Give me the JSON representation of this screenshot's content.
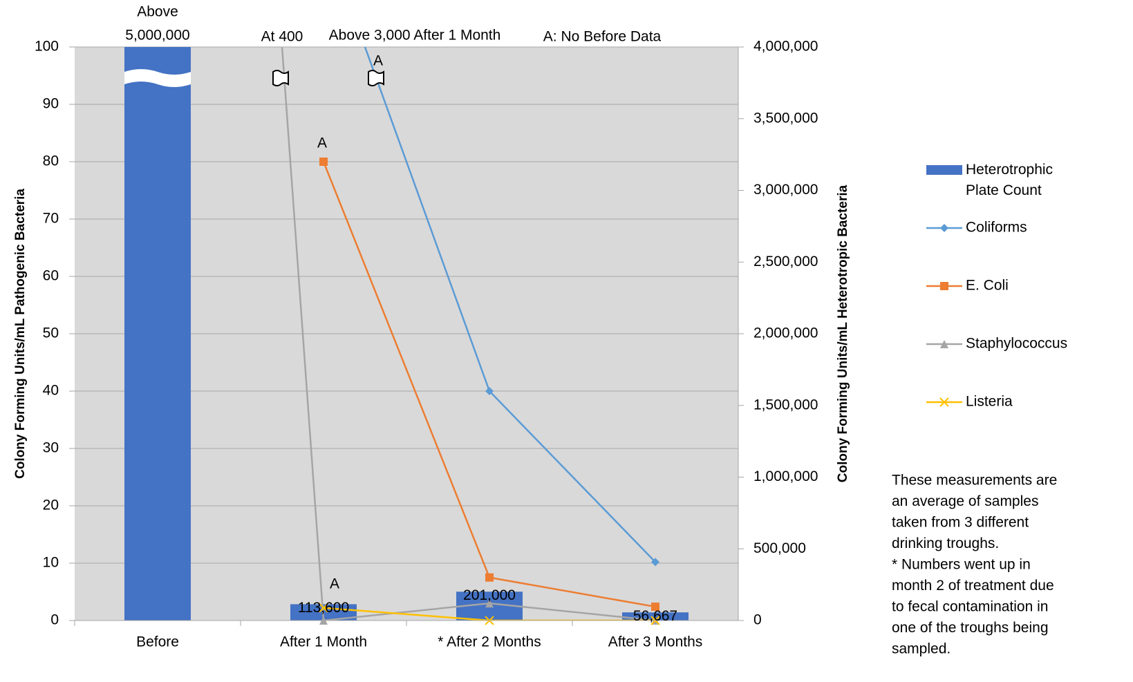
{
  "chart_data": {
    "type": "combo",
    "categories": [
      "Before",
      "After 1 Month",
      "* After 2 Months",
      "After 3 Months"
    ],
    "ylabel": "Colony Forming Units/mL Pathogenic Bacteria",
    "y2label": "Colony Forming Units/mL Heterotropic Bacteria",
    "ylim": [
      0,
      100
    ],
    "yticks": [
      0,
      10,
      20,
      30,
      40,
      50,
      60,
      70,
      80,
      90,
      100
    ],
    "y2lim": [
      0,
      4000000
    ],
    "y2ticks": [
      0,
      {
        "value": 500000,
        "label": "500,000"
      },
      {
        "value": 1000000,
        "label": "1,000,000"
      },
      {
        "value": 1500000,
        "label": "1,500,000"
      },
      {
        "value": 2000000,
        "label": "2,000,000"
      },
      {
        "value": 2500000,
        "label": "2,500,000"
      },
      {
        "value": 3000000,
        "label": "3,000,000"
      },
      {
        "value": 3500000,
        "label": "3,500,000"
      },
      {
        "value": {
          "value": 4000000,
          "label": "4,000,000"
        },
        "label": "4,000,000"
      }
    ],
    "grid": true,
    "series": [
      {
        "name": "Heterotrophic Plate Count",
        "type": "bar",
        "axis": "y2",
        "color": "#4472c4",
        "values": [
          5000000,
          113600,
          201000,
          56667
        ],
        "value_labels": [
          "5,000,000",
          "113,600",
          "201,000",
          "56,667"
        ]
      },
      {
        "name": "Coliforms",
        "type": "line",
        "marker": "diamond",
        "color": "#5b9bd5",
        "values": [
          null,
          120,
          40,
          10.2
        ]
      },
      {
        "name": "E. Coli",
        "type": "line",
        "marker": "square",
        "color": "#ed7d31",
        "values": [
          null,
          80,
          7.5,
          2.4
        ]
      },
      {
        "name": "Staphylococcus",
        "type": "line",
        "marker": "triangle",
        "color": "#a5a5a5",
        "values": [
          400,
          0,
          3,
          0
        ]
      },
      {
        "name": "Listeria",
        "type": "line",
        "marker": "x",
        "color": "#ffc000",
        "values": [
          null,
          2.2,
          0,
          0
        ]
      }
    ],
    "annotations": [
      "Above",
      "At 400",
      "Above 3,000 After 1 Month",
      "A: No Before Data",
      "A",
      "A",
      "A"
    ],
    "note": [
      "These measurements are",
      "an average of samples",
      "taken from 3 different",
      "drinking troughs.",
      "* Numbers went up in",
      "month 2 of treatment due",
      "to fecal contamination in",
      "one of the troughs being",
      "sampled."
    ]
  }
}
